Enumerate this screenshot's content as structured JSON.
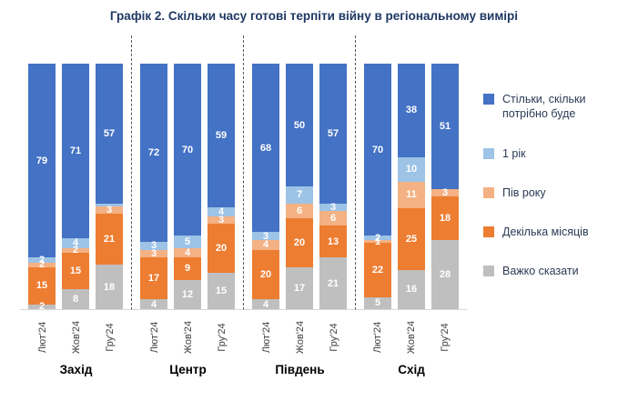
{
  "title": "Графік 2. Скільки часу готові терпіти війну в регіональному вимірі",
  "chart_data": {
    "type": "bar",
    "subtype": "stacked-100",
    "stack_order_bottom_to_top": [
      "hard_to_say",
      "few_months",
      "half_year",
      "one_year",
      "as_long_as_needed"
    ],
    "colors": {
      "as_long_as_needed": "#4472C4",
      "one_year": "#9DC3E6",
      "half_year": "#F4B183",
      "few_months": "#ED7D31",
      "hard_to_say": "#BFBFBF"
    },
    "legend": [
      {
        "key": "as_long_as_needed",
        "label": "Стільки, скільки потрібно буде"
      },
      {
        "key": "one_year",
        "label": "1 рік"
      },
      {
        "key": "half_year",
        "label": "Пів року"
      },
      {
        "key": "few_months",
        "label": "Декілька місяців"
      },
      {
        "key": "hard_to_say",
        "label": "Важко сказати"
      }
    ],
    "regions": [
      {
        "id": "west",
        "name": "Захід",
        "bars": [
          {
            "period": "Лют'24",
            "segments": [
              {
                "key": "hard_to_say",
                "value": 2,
                "label": "2"
              },
              {
                "key": "few_months",
                "value": 15,
                "label": "15"
              },
              {
                "key": "half_year",
                "value": 2,
                "label": "2"
              },
              {
                "key": "one_year",
                "value": 2,
                "label": "2"
              },
              {
                "key": "as_long_as_needed",
                "value": 79,
                "label": "79"
              }
            ]
          },
          {
            "period": "Жов'24",
            "segments": [
              {
                "key": "hard_to_say",
                "value": 8,
                "label": "8"
              },
              {
                "key": "few_months",
                "value": 15,
                "label": "15"
              },
              {
                "key": "half_year",
                "value": 2,
                "label": "2"
              },
              {
                "key": "one_year",
                "value": 4,
                "label": "4"
              },
              {
                "key": "as_long_as_needed",
                "value": 71,
                "label": "71"
              }
            ]
          },
          {
            "period": "Гру'24",
            "segments": [
              {
                "key": "hard_to_say",
                "value": 18,
                "label": "18"
              },
              {
                "key": "few_months",
                "value": 21,
                "label": "21"
              },
              {
                "key": "half_year",
                "value": 3,
                "label": "3"
              },
              {
                "key": "one_year",
                "value": 1,
                "label": ""
              },
              {
                "key": "as_long_as_needed",
                "value": 57,
                "label": "57"
              }
            ]
          }
        ]
      },
      {
        "id": "center",
        "name": "Центр",
        "bars": [
          {
            "period": "Лют'24",
            "segments": [
              {
                "key": "hard_to_say",
                "value": 4,
                "label": "4"
              },
              {
                "key": "few_months",
                "value": 17,
                "label": "17"
              },
              {
                "key": "half_year",
                "value": 3,
                "label": "3"
              },
              {
                "key": "one_year",
                "value": 3,
                "label": "3"
              },
              {
                "key": "as_long_as_needed",
                "value": 72,
                "label": "72"
              }
            ]
          },
          {
            "period": "Жов'24",
            "segments": [
              {
                "key": "hard_to_say",
                "value": 12,
                "label": "12"
              },
              {
                "key": "few_months",
                "value": 9,
                "label": "9"
              },
              {
                "key": "half_year",
                "value": 4,
                "label": "4"
              },
              {
                "key": "one_year",
                "value": 5,
                "label": "5"
              },
              {
                "key": "as_long_as_needed",
                "value": 70,
                "label": "70"
              }
            ]
          },
          {
            "period": "Гру'24",
            "segments": [
              {
                "key": "hard_to_say",
                "value": 15,
                "label": "15"
              },
              {
                "key": "few_months",
                "value": 20,
                "label": "20"
              },
              {
                "key": "half_year",
                "value": 3,
                "label": "3"
              },
              {
                "key": "one_year",
                "value": 4,
                "label": "4"
              },
              {
                "key": "as_long_as_needed",
                "value": 59,
                "label": "59"
              }
            ]
          }
        ]
      },
      {
        "id": "south",
        "name": "Південь",
        "bars": [
          {
            "period": "Лют'24",
            "segments": [
              {
                "key": "hard_to_say",
                "value": 4,
                "label": "4"
              },
              {
                "key": "few_months",
                "value": 20,
                "label": "20"
              },
              {
                "key": "half_year",
                "value": 4,
                "label": "4"
              },
              {
                "key": "one_year",
                "value": 3,
                "label": "3"
              },
              {
                "key": "as_long_as_needed",
                "value": 68,
                "label": "68"
              }
            ]
          },
          {
            "period": "Жов'24",
            "segments": [
              {
                "key": "hard_to_say",
                "value": 17,
                "label": "17"
              },
              {
                "key": "few_months",
                "value": 20,
                "label": "20"
              },
              {
                "key": "half_year",
                "value": 6,
                "label": "6"
              },
              {
                "key": "one_year",
                "value": 7,
                "label": "7"
              },
              {
                "key": "as_long_as_needed",
                "value": 50,
                "label": "50"
              }
            ]
          },
          {
            "period": "Гру'24",
            "segments": [
              {
                "key": "hard_to_say",
                "value": 21,
                "label": "21"
              },
              {
                "key": "few_months",
                "value": 13,
                "label": "13"
              },
              {
                "key": "half_year",
                "value": 6,
                "label": "6"
              },
              {
                "key": "one_year",
                "value": 3,
                "label": "3"
              },
              {
                "key": "as_long_as_needed",
                "value": 57,
                "label": "57"
              }
            ]
          }
        ]
      },
      {
        "id": "east",
        "name": "Схід",
        "bars": [
          {
            "period": "Лют'24",
            "segments": [
              {
                "key": "hard_to_say",
                "value": 5,
                "label": "5"
              },
              {
                "key": "few_months",
                "value": 22,
                "label": "22"
              },
              {
                "key": "half_year",
                "value": 1,
                "label": "1"
              },
              {
                "key": "one_year",
                "value": 2,
                "label": "2"
              },
              {
                "key": "as_long_as_needed",
                "value": 70,
                "label": "70"
              }
            ]
          },
          {
            "period": "Жов'24",
            "segments": [
              {
                "key": "hard_to_say",
                "value": 16,
                "label": "16"
              },
              {
                "key": "few_months",
                "value": 25,
                "label": "25"
              },
              {
                "key": "half_year",
                "value": 11,
                "label": "11"
              },
              {
                "key": "one_year",
                "value": 10,
                "label": "10"
              },
              {
                "key": "as_long_as_needed",
                "value": 38,
                "label": "38"
              }
            ]
          },
          {
            "period": "Гру'24",
            "segments": [
              {
                "key": "hard_to_say",
                "value": 28,
                "label": "28"
              },
              {
                "key": "few_months",
                "value": 18,
                "label": "18"
              },
              {
                "key": "half_year",
                "value": 3,
                "label": "3"
              },
              {
                "key": "one_year",
                "value": 0,
                "label": ""
              },
              {
                "key": "as_long_as_needed",
                "value": 51,
                "label": "51"
              }
            ]
          }
        ]
      }
    ]
  }
}
